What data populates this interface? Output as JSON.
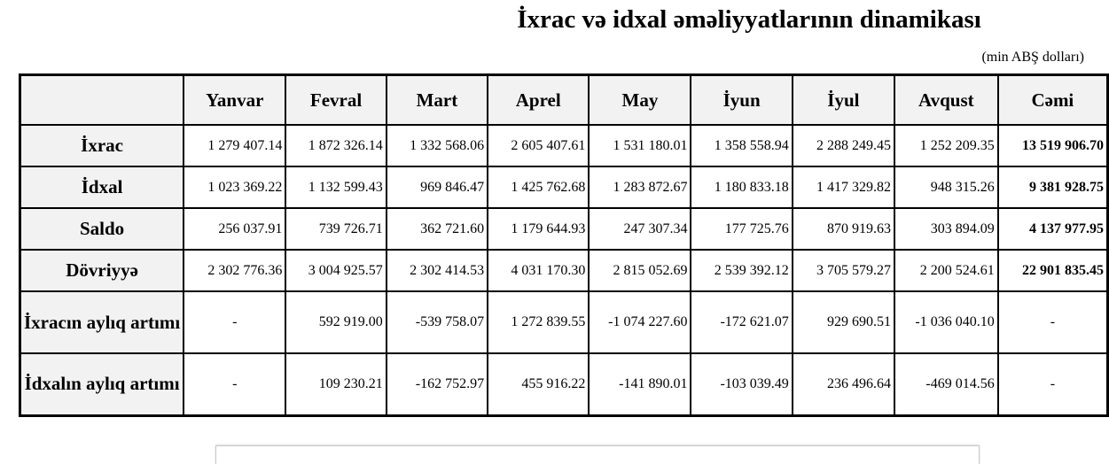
{
  "title": "İxrac və idxal əməliyyatlarının dinamikası",
  "unit": "(min ABŞ dolları)",
  "table": {
    "columns": [
      "",
      "Yanvar",
      "Fevral",
      "Mart",
      "Aprel",
      "May",
      "İyun",
      "İyul",
      "Avqust",
      "Cəmi"
    ],
    "rows": [
      {
        "label": "İxrac",
        "values": [
          "1 279 407.14",
          "1 872 326.14",
          "1 332 568.06",
          "2 605 407.61",
          "1 531 180.01",
          "1 358 558.94",
          "2 288 249.45",
          "1 252 209.35"
        ],
        "total": "13 519 906.70"
      },
      {
        "label": "İdxal",
        "values": [
          "1 023 369.22",
          "1 132 599.43",
          "969 846.47",
          "1 425 762.68",
          "1 283 872.67",
          "1 180 833.18",
          "1 417 329.82",
          "948 315.26"
        ],
        "total": "9 381 928.75"
      },
      {
        "label": "Saldo",
        "values": [
          "256 037.91",
          "739 726.71",
          "362 721.60",
          "1 179 644.93",
          "247 307.34",
          "177 725.76",
          "870 919.63",
          "303 894.09"
        ],
        "total": "4 137 977.95"
      },
      {
        "label": "Dövriyyə",
        "values": [
          "2 302 776.36",
          "3 004 925.57",
          "2 302 414.53",
          "4 031 170.30",
          "2 815 052.69",
          "2 539 392.12",
          "3 705 579.27",
          "2 200 524.61"
        ],
        "total": "22 901 835.45"
      },
      {
        "label": "İxracın aylıq artımı",
        "values": [
          "-",
          "592 919.00",
          "-539 758.07",
          "1 272 839.55",
          "-1 074 227.60",
          "-172 621.07",
          "929 690.51",
          "-1 036 040.10"
        ],
        "total": "-"
      },
      {
        "label": "İdxalın aylıq artımı",
        "values": [
          "-",
          "109 230.21",
          "-162 752.97",
          "455 916.22",
          "-141 890.01",
          "-103 039.49",
          "236 496.64",
          "-469 014.56"
        ],
        "total": "-"
      }
    ]
  }
}
